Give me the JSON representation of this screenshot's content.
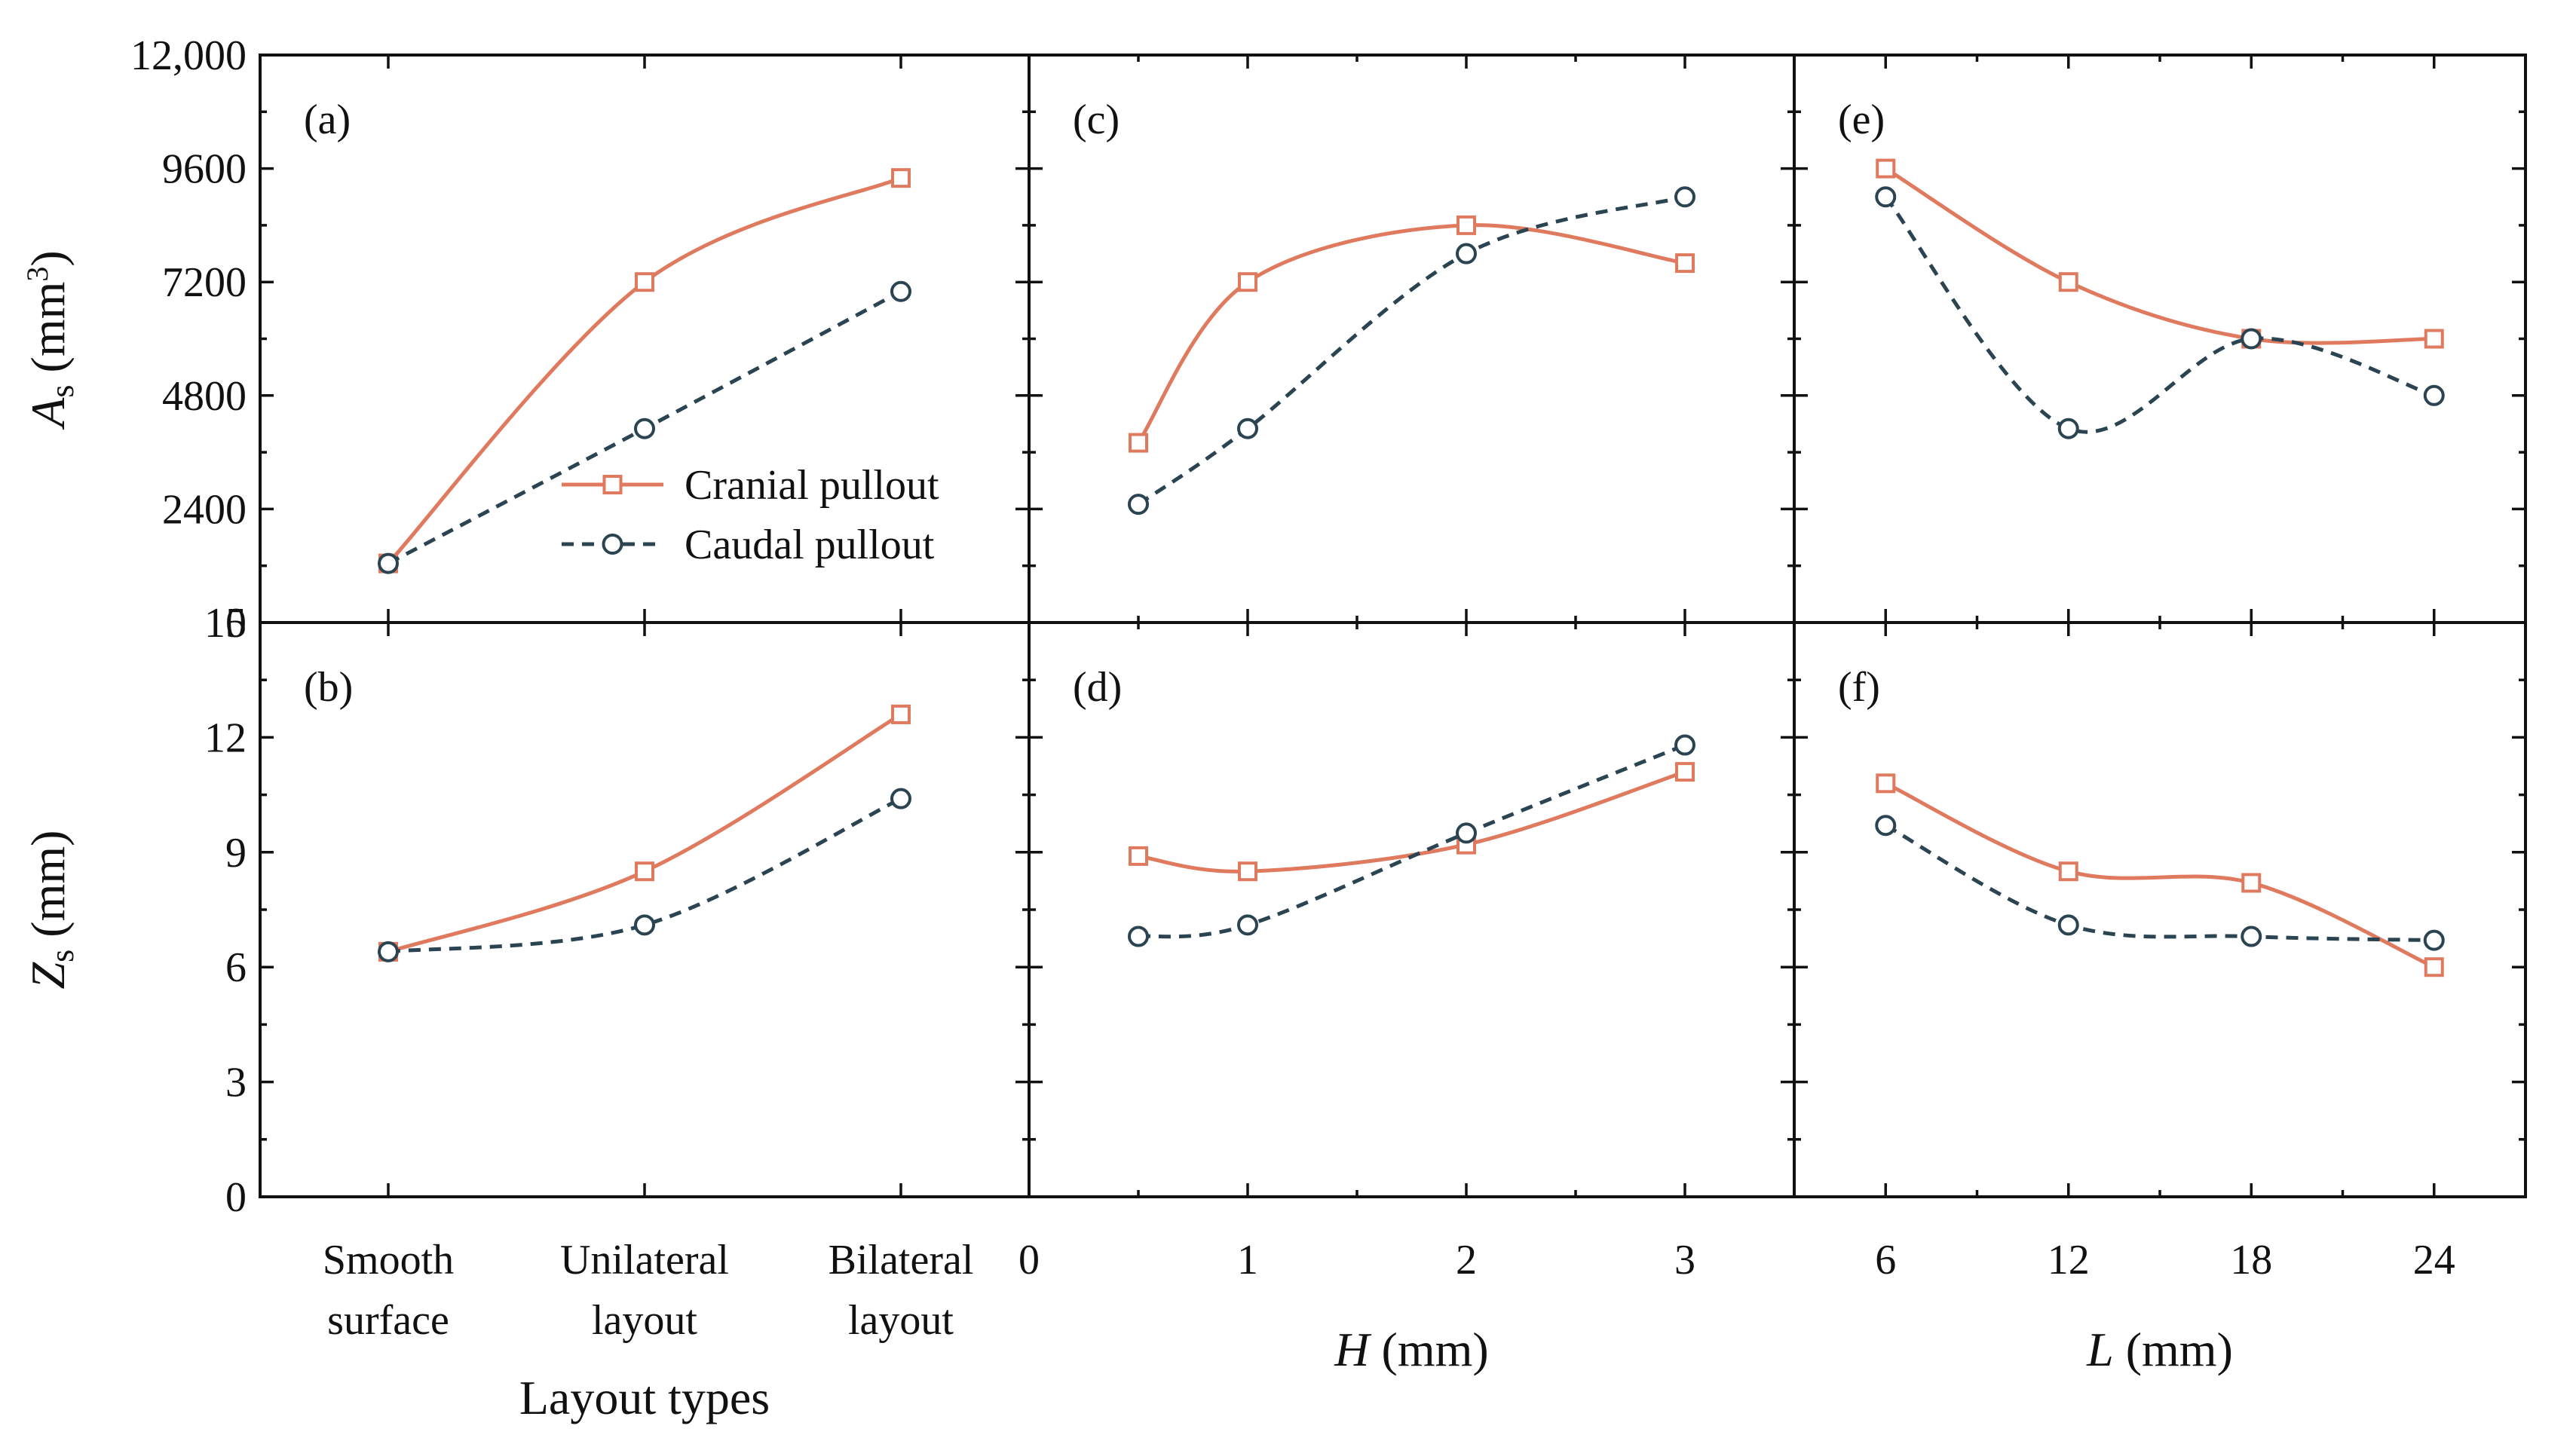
{
  "figure": {
    "x_axis_titles": {
      "layout": "Layout types",
      "H": {
        "symbol": "H",
        "unit": " (mm)"
      },
      "L": {
        "symbol": "L",
        "unit": " (mm)"
      }
    },
    "y_axis_titles": {
      "As": {
        "symbol": "A",
        "subscript": "s",
        "unit_open": " (mm",
        "superscript": "3",
        "unit_close": ")"
      },
      "Zs": {
        "symbol": "Z",
        "subscript": "s",
        "unit": " (mm)"
      }
    },
    "legend": {
      "placement": "inside panel (a), lower-right",
      "entries": [
        "Cranial pullout",
        "Caudal pullout"
      ]
    },
    "x_tick_labels": {
      "layout": [
        [
          "Smooth",
          "surface"
        ],
        [
          "Unilateral",
          "layout"
        ],
        [
          "Bilateral",
          "layout"
        ]
      ],
      "H": [
        "0",
        "1",
        "2",
        "3"
      ],
      "L": [
        "6",
        "12",
        "18",
        "24"
      ]
    },
    "y_tick_labels": {
      "As": [
        "0",
        "2400",
        "4800",
        "7200",
        "9600",
        "12,000"
      ],
      "Zs": [
        "0",
        "3",
        "6",
        "9",
        "12",
        "15"
      ]
    }
  },
  "colors": {
    "cranial": "#E07A5F",
    "caudal": "#2B4452",
    "axis": "#111111"
  },
  "chart_data": [
    {
      "panel": "(a)",
      "type": "line",
      "xlabel": "Layout types",
      "ylabel": "As (mm3)",
      "categories": [
        "Smooth surface",
        "Unilateral layout",
        "Bilateral layout"
      ],
      "ylim": [
        0,
        12000
      ],
      "series": [
        {
          "name": "Cranial pullout",
          "values": [
            1250,
            7200,
            9400
          ]
        },
        {
          "name": "Caudal pullout",
          "values": [
            1250,
            4100,
            7000
          ]
        }
      ]
    },
    {
      "panel": "(b)",
      "type": "line",
      "xlabel": "Layout types",
      "ylabel": "Zs (mm)",
      "categories": [
        "Smooth surface",
        "Unilateral layout",
        "Bilateral layout"
      ],
      "ylim": [
        0,
        15
      ],
      "series": [
        {
          "name": "Cranial pullout",
          "values": [
            6.4,
            8.5,
            12.6
          ]
        },
        {
          "name": "Caudal pullout",
          "values": [
            6.4,
            7.1,
            10.4
          ]
        }
      ]
    },
    {
      "panel": "(c)",
      "type": "line",
      "xlabel": "H (mm)",
      "ylabel": "As (mm3)",
      "x": [
        0.5,
        1,
        2,
        3
      ],
      "xlim": [
        0,
        3.5
      ],
      "ylim": [
        0,
        12000
      ],
      "series": [
        {
          "name": "Cranial pullout",
          "values": [
            3800,
            7200,
            8400,
            7600
          ]
        },
        {
          "name": "Caudal pullout",
          "values": [
            2500,
            4100,
            7800,
            9000
          ]
        }
      ]
    },
    {
      "panel": "(d)",
      "type": "line",
      "xlabel": "H (mm)",
      "ylabel": "Zs (mm)",
      "x": [
        0.5,
        1,
        2,
        3
      ],
      "xlim": [
        0,
        3.5
      ],
      "ylim": [
        0,
        15
      ],
      "series": [
        {
          "name": "Cranial pullout",
          "values": [
            8.9,
            8.5,
            9.2,
            11.1
          ]
        },
        {
          "name": "Caudal pullout",
          "values": [
            6.8,
            7.1,
            9.5,
            11.8
          ]
        }
      ]
    },
    {
      "panel": "(e)",
      "type": "line",
      "xlabel": "L (mm)",
      "ylabel": "As (mm3)",
      "x": [
        6,
        12,
        18,
        24
      ],
      "xlim": [
        3,
        27
      ],
      "ylim": [
        0,
        12000
      ],
      "series": [
        {
          "name": "Cranial pullout",
          "values": [
            9600,
            7200,
            6000,
            6000
          ]
        },
        {
          "name": "Caudal pullout",
          "values": [
            9000,
            4100,
            6000,
            4800
          ]
        }
      ]
    },
    {
      "panel": "(f)",
      "type": "line",
      "xlabel": "L (mm)",
      "ylabel": "Zs (mm)",
      "x": [
        6,
        12,
        18,
        24
      ],
      "xlim": [
        3,
        27
      ],
      "ylim": [
        0,
        15
      ],
      "series": [
        {
          "name": "Cranial pullout",
          "values": [
            10.8,
            8.5,
            8.2,
            6.0
          ]
        },
        {
          "name": "Caudal pullout",
          "values": [
            9.7,
            7.1,
            6.8,
            6.7
          ]
        }
      ]
    }
  ]
}
